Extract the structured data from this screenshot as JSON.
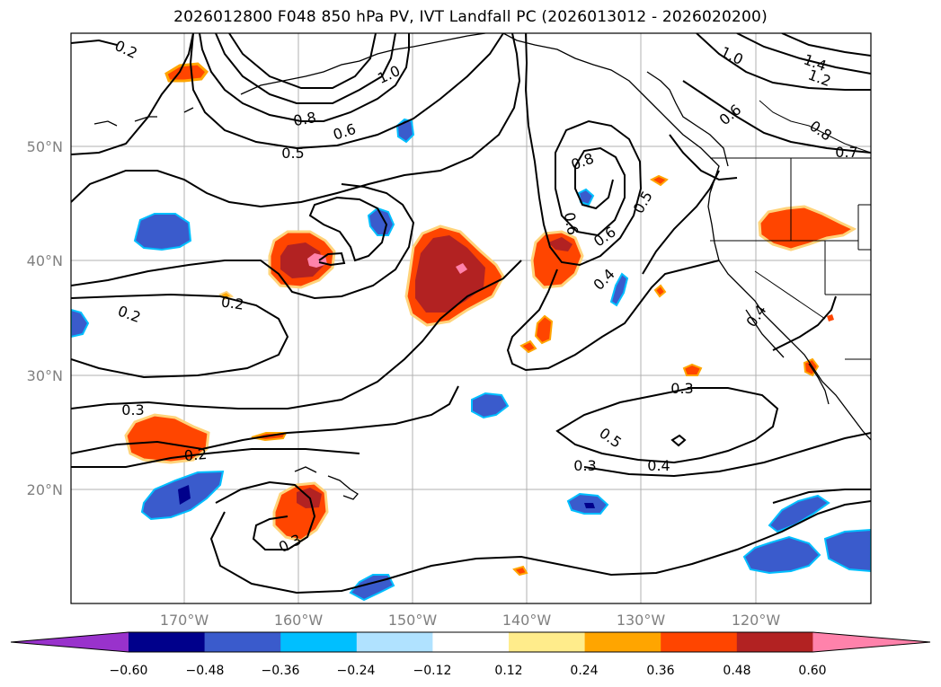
{
  "title": "2026012800 F048 850 hPa PV, IVT Landfall PC (2026013012 - 2026020200)",
  "lat_labels": [
    "50°N",
    "40°N",
    "30°N",
    "20°N"
  ],
  "lon_labels": [
    "170°W",
    "160°W",
    "150°W",
    "140°W",
    "130°W",
    "120°W"
  ],
  "contour_labels": [
    "0.2",
    "1.0",
    "0.8",
    "0.6",
    "0.5",
    "0.8",
    "0.6",
    "0.5",
    "0.6",
    "0.4",
    "0.2",
    "0.2",
    "0.3",
    "0.2",
    "0.3",
    "0.5",
    "0.4",
    "0.3",
    "0.3",
    "1.0",
    "1.4",
    "1.2",
    "0.6",
    "0.8",
    "0.7",
    "0.4"
  ],
  "colorbar": {
    "ticks": [
      "−0.60",
      "−0.48",
      "−0.36",
      "−0.24",
      "−0.12",
      "0.12",
      "0.24",
      "0.36",
      "0.48",
      "0.60"
    ],
    "colors": [
      "#9932cc",
      "#00008b",
      "#3a5bcc",
      "#00bfff",
      "#b0e2ff",
      "#ffffff",
      "#ffec8b",
      "#ffa500",
      "#ff4500",
      "#b22222",
      "#ff82ab"
    ]
  }
}
